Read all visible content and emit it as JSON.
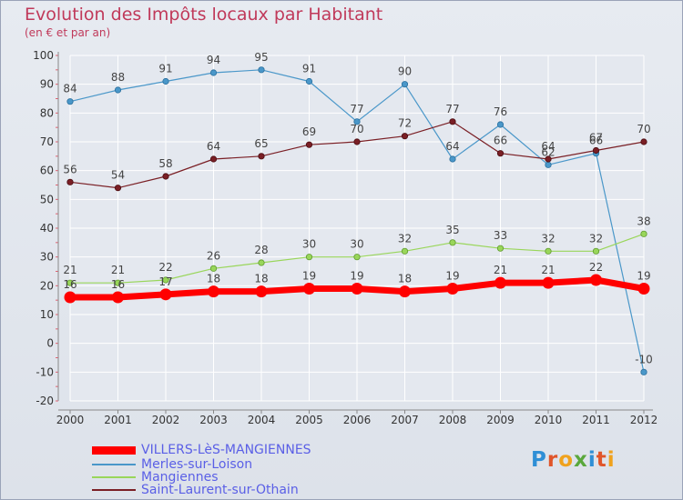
{
  "title": "Evolution des Impôts locaux par Habitant",
  "subtitle": "(en € et par an)",
  "brand": "Proxiti",
  "chart_data": {
    "type": "line",
    "title": "Evolution des Impôts locaux par Habitant",
    "subtitle": "(en € et par an)",
    "xlabel": "",
    "ylabel": "",
    "categories": [
      "2000",
      "2001",
      "2002",
      "2003",
      "2004",
      "2005",
      "2006",
      "2007",
      "2008",
      "2009",
      "2010",
      "2011",
      "2012"
    ],
    "ylim": [
      -20,
      100
    ],
    "yticks": [
      -20,
      -10,
      0,
      10,
      20,
      30,
      40,
      50,
      60,
      70,
      80,
      90,
      100
    ],
    "grid": true,
    "legend_position": "bottom-left",
    "series": [
      {
        "name": "VILLERS-LèS-MANGIENNES",
        "color": "#ff0000",
        "values": [
          16,
          16,
          17,
          18,
          18,
          19,
          19,
          18,
          19,
          21,
          21,
          22,
          19
        ]
      },
      {
        "name": "Merles-sur-Loison",
        "color": "#4a97c9",
        "values": [
          84,
          88,
          91,
          94,
          95,
          91,
          77,
          90,
          64,
          76,
          62,
          66,
          -10
        ]
      },
      {
        "name": "Mangiennes",
        "color": "#99d65a",
        "values": [
          21,
          21,
          22,
          26,
          28,
          30,
          30,
          32,
          35,
          33,
          32,
          32,
          38
        ]
      },
      {
        "name": "Saint-Laurent-sur-Othain",
        "color": "#7a1f25",
        "values": [
          56,
          54,
          58,
          64,
          65,
          69,
          70,
          72,
          77,
          66,
          64,
          67,
          70
        ]
      }
    ]
  }
}
